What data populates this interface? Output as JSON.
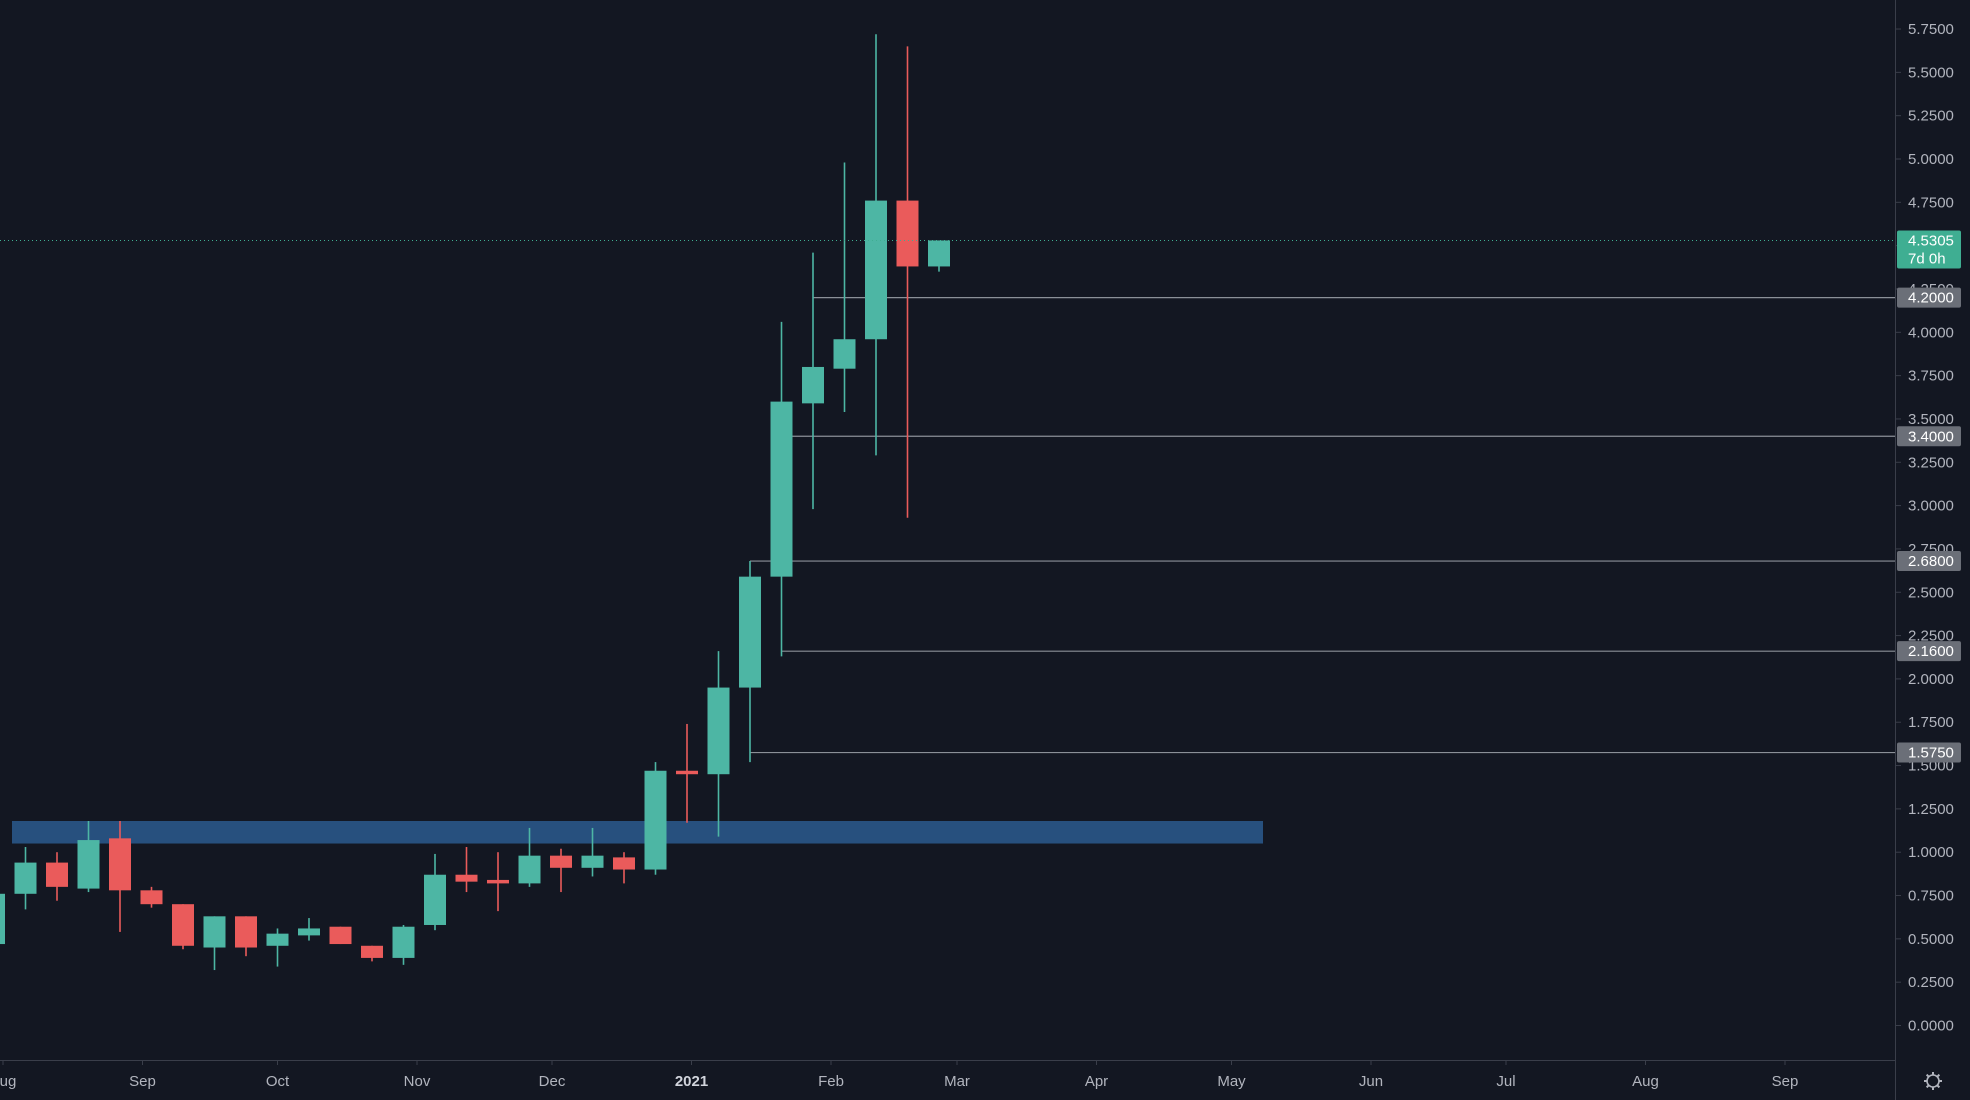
{
  "chart_data": {
    "type": "candlestick",
    "timeframe": "weekly",
    "colors": {
      "background": "#131722",
      "up": "#4db6a4",
      "down": "#ea5b5b",
      "level_line": "#8b9098",
      "level_tag_bg": "#6b6f78",
      "zone_fill": "#2b5a8e",
      "axis_text": "#b2b5be",
      "axis_line": "#3a3e4a",
      "price_tag_bg": "#3fae92"
    },
    "y_axis": {
      "range": [
        -0.2,
        5.9
      ],
      "ticks": [
        "0.0000",
        "0.2500",
        "0.5000",
        "0.7500",
        "1.0000",
        "1.2500",
        "1.5000",
        "1.7500",
        "2.0000",
        "2.2500",
        "2.5000",
        "2.7500",
        "3.0000",
        "3.2500",
        "3.5000",
        "3.7500",
        "4.0000",
        "4.2500",
        "4.5000",
        "4.7500",
        "5.0000",
        "5.2500",
        "5.5000",
        "5.7500"
      ]
    },
    "x_axis": {
      "labels": [
        "Aug",
        "Sep",
        "Oct",
        "Nov",
        "Dec",
        "2021",
        "Feb",
        "Mar",
        "Apr",
        "May",
        "Jun",
        "Jul",
        "Aug",
        "Sep"
      ],
      "bold_label": "2021"
    },
    "candles": [
      {
        "date": "2020-07-27",
        "o": 0.47,
        "h": 0.78,
        "l": 0.44,
        "c": 0.76
      },
      {
        "date": "2020-08-03",
        "o": 0.76,
        "h": 1.03,
        "l": 0.67,
        "c": 0.94
      },
      {
        "date": "2020-08-10",
        "o": 0.94,
        "h": 1.0,
        "l": 0.72,
        "c": 0.8
      },
      {
        "date": "2020-08-17",
        "o": 0.79,
        "h": 1.18,
        "l": 0.77,
        "c": 1.07
      },
      {
        "date": "2020-08-24",
        "o": 1.08,
        "h": 1.18,
        "l": 0.54,
        "c": 0.78
      },
      {
        "date": "2020-08-31",
        "o": 0.78,
        "h": 0.8,
        "l": 0.68,
        "c": 0.7
      },
      {
        "date": "2020-09-07",
        "o": 0.7,
        "h": 0.7,
        "l": 0.44,
        "c": 0.46
      },
      {
        "date": "2020-09-14",
        "o": 0.45,
        "h": 0.63,
        "l": 0.32,
        "c": 0.63
      },
      {
        "date": "2020-09-21",
        "o": 0.63,
        "h": 0.63,
        "l": 0.4,
        "c": 0.45
      },
      {
        "date": "2020-09-28",
        "o": 0.46,
        "h": 0.56,
        "l": 0.34,
        "c": 0.53
      },
      {
        "date": "2020-10-05",
        "o": 0.52,
        "h": 0.62,
        "l": 0.49,
        "c": 0.56
      },
      {
        "date": "2020-10-12",
        "o": 0.57,
        "h": 0.57,
        "l": 0.47,
        "c": 0.47
      },
      {
        "date": "2020-10-19",
        "o": 0.46,
        "h": 0.46,
        "l": 0.37,
        "c": 0.39
      },
      {
        "date": "2020-10-26",
        "o": 0.39,
        "h": 0.58,
        "l": 0.35,
        "c": 0.57
      },
      {
        "date": "2020-11-02",
        "o": 0.58,
        "h": 0.99,
        "l": 0.55,
        "c": 0.87
      },
      {
        "date": "2020-11-09",
        "o": 0.87,
        "h": 1.03,
        "l": 0.77,
        "c": 0.83
      },
      {
        "date": "2020-11-16",
        "o": 0.84,
        "h": 1.0,
        "l": 0.66,
        "c": 0.82
      },
      {
        "date": "2020-11-23",
        "o": 0.82,
        "h": 1.14,
        "l": 0.8,
        "c": 0.98
      },
      {
        "date": "2020-11-30",
        "o": 0.98,
        "h": 1.02,
        "l": 0.77,
        "c": 0.91
      },
      {
        "date": "2020-12-07",
        "o": 0.91,
        "h": 1.14,
        "l": 0.86,
        "c": 0.98
      },
      {
        "date": "2020-12-14",
        "o": 0.97,
        "h": 1.0,
        "l": 0.82,
        "c": 0.9
      },
      {
        "date": "2020-12-21",
        "o": 0.9,
        "h": 1.52,
        "l": 0.87,
        "c": 1.47
      },
      {
        "date": "2020-12-28",
        "o": 1.47,
        "h": 1.74,
        "l": 1.17,
        "c": 1.45
      },
      {
        "date": "2021-01-04",
        "o": 1.45,
        "h": 2.16,
        "l": 1.09,
        "c": 1.95
      },
      {
        "date": "2021-01-11",
        "o": 1.95,
        "h": 2.68,
        "l": 1.52,
        "c": 2.59
      },
      {
        "date": "2021-01-18",
        "o": 2.59,
        "h": 4.06,
        "l": 2.13,
        "c": 3.6
      },
      {
        "date": "2021-01-25",
        "o": 3.59,
        "h": 4.46,
        "l": 2.98,
        "c": 3.8
      },
      {
        "date": "2021-02-01",
        "o": 3.79,
        "h": 4.98,
        "l": 3.54,
        "c": 3.96
      },
      {
        "date": "2021-02-08",
        "o": 3.96,
        "h": 5.72,
        "l": 3.29,
        "c": 4.76
      },
      {
        "date": "2021-02-15",
        "o": 4.76,
        "h": 5.65,
        "l": 2.93,
        "c": 4.38
      },
      {
        "date": "2021-02-22",
        "o": 4.38,
        "h": 4.53,
        "l": 4.35,
        "c": 4.53
      }
    ],
    "horizontal_levels": [
      {
        "price": 4.2,
        "label": "4.2000",
        "start_date": "2021-01-25"
      },
      {
        "price": 3.4,
        "label": "3.4000",
        "start_date": "2021-01-18"
      },
      {
        "price": 2.68,
        "label": "2.6800",
        "start_date": "2021-01-11"
      },
      {
        "price": 2.16,
        "label": "2.1600",
        "start_date": "2021-01-18"
      },
      {
        "price": 1.575,
        "label": "1.5750",
        "start_date": "2021-01-11"
      }
    ],
    "zone": {
      "low": 1.05,
      "high": 1.18,
      "start_date": "2020-08-03",
      "end_date": "2021-05-08"
    },
    "current_price": {
      "value": 4.53,
      "label": "4.5305",
      "countdown": "7d 0h"
    }
  }
}
